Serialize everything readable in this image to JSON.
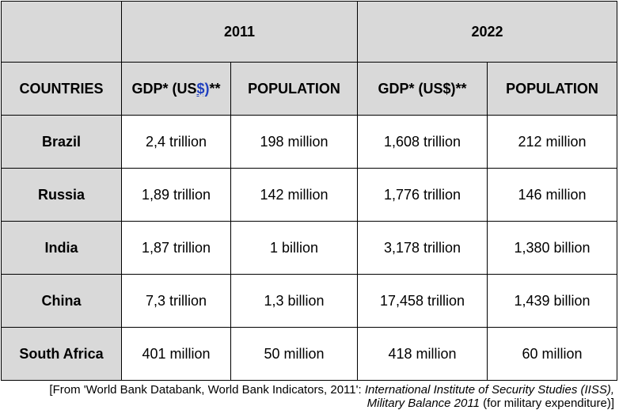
{
  "table": {
    "corner": "",
    "years": [
      "2011",
      "2022"
    ],
    "header_label": "COUNTRIES",
    "gdp_header_main": "GDP* (US",
    "gdp_header_link": "$)",
    "gdp_header_tail": "**",
    "gdp_header_full": "GDP* (US$)**",
    "population_header": "POPULATION",
    "rows": [
      {
        "country": "Brazil",
        "gdp_2011": "2,4 trillion",
        "pop_2011": "198 million",
        "gdp_2022": "1,608 trillion",
        "pop_2022": "212 million"
      },
      {
        "country": "Russia",
        "gdp_2011": "1,89 trillion",
        "pop_2011": "142 million",
        "gdp_2022": "1,776 trillion",
        "pop_2022": "146 million"
      },
      {
        "country": "India",
        "gdp_2011": "1,87 trillion",
        "pop_2011": "1 billion",
        "gdp_2022": "3,178 trillion",
        "pop_2022": "1,380 billion"
      },
      {
        "country": "China",
        "gdp_2011": "7,3 trillion",
        "pop_2011": "1,3 billion",
        "gdp_2022": "17,458 trillion",
        "pop_2022": "1,439 billion"
      },
      {
        "country": "South Africa",
        "gdp_2011": "401 million",
        "pop_2011": "50 million",
        "gdp_2022": "418 million",
        "pop_2022": "60 million"
      }
    ]
  },
  "footnote": {
    "line1_plain": "[From 'World Bank Databank, World Bank Indicators, 2011': ",
    "line1_italic": "International Institute of Security Studies (IISS),",
    "line2_italic": "Military Balance 2011",
    "line2_plain": " (for military expenditure)]"
  }
}
